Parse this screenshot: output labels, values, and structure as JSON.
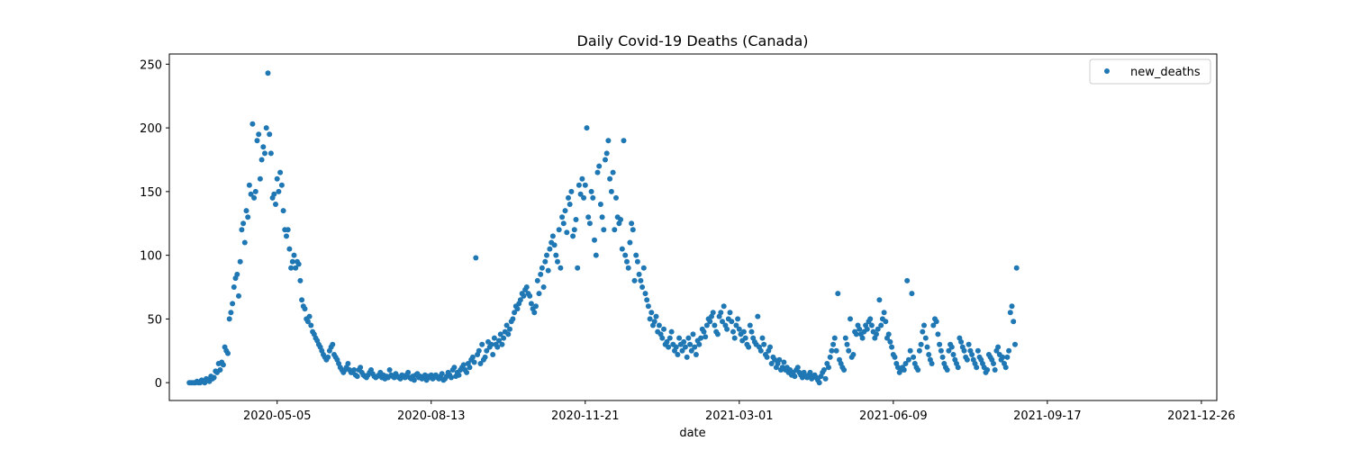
{
  "chart_data": {
    "type": "scatter",
    "title": "Daily Covid-19 Deaths (Canada)",
    "xlabel": "date",
    "ylabel": "",
    "x_ticks": [
      "2020-05-05",
      "2020-08-13",
      "2020-11-21",
      "2021-03-01",
      "2021-06-09",
      "2021-09-17",
      "2021-12-26"
    ],
    "y_ticks": [
      0,
      50,
      100,
      150,
      200,
      250
    ],
    "xlim": [
      "2020-02-25",
      "2022-01-05"
    ],
    "ylim": [
      -14,
      258
    ],
    "legend_position": "top-right",
    "grid": false,
    "colors": {
      "series": "#1f77b4"
    },
    "series": [
      {
        "name": "new_deaths",
        "x_start": "2020-03-09",
        "x_step_days": 1,
        "values": [
          0,
          0,
          0,
          0,
          0,
          1,
          0,
          0,
          2,
          1,
          0,
          3,
          2,
          1,
          5,
          3,
          4,
          9,
          8,
          15,
          10,
          16,
          14,
          28,
          25,
          23,
          50,
          55,
          62,
          75,
          82,
          85,
          68,
          95,
          120,
          125,
          110,
          135,
          130,
          155,
          148,
          203,
          145,
          150,
          190,
          195,
          160,
          175,
          185,
          180,
          200,
          243,
          195,
          180,
          145,
          148,
          140,
          160,
          150,
          165,
          155,
          135,
          120,
          115,
          120,
          105,
          90,
          95,
          100,
          90,
          95,
          93,
          80,
          65,
          60,
          58,
          50,
          48,
          52,
          45,
          40,
          38,
          35,
          33,
          30,
          28,
          25,
          22,
          20,
          18,
          20,
          25,
          28,
          30,
          22,
          20,
          18,
          15,
          12,
          10,
          8,
          10,
          12,
          15,
          10,
          8,
          8,
          10,
          6,
          5,
          10,
          12,
          8,
          6,
          5,
          4,
          6,
          8,
          10,
          7,
          5,
          4,
          5,
          6,
          8,
          4,
          6,
          3,
          5,
          4,
          10,
          6,
          5,
          4,
          7,
          5,
          4,
          3,
          6,
          5,
          4,
          6,
          8,
          4,
          3,
          5,
          2,
          6,
          7,
          4,
          5,
          3,
          4,
          6,
          2,
          5,
          4,
          6,
          3,
          5,
          6,
          4,
          3,
          5,
          7,
          2,
          3,
          5,
          8,
          6,
          4,
          10,
          12,
          5,
          8,
          6,
          10,
          12,
          14,
          10,
          8,
          15,
          12,
          18,
          20,
          16,
          98,
          22,
          25,
          15,
          30,
          18,
          20,
          25,
          32,
          28,
          30,
          22,
          35,
          30,
          28,
          33,
          38,
          30,
          35,
          40,
          45,
          38,
          42,
          48,
          50,
          55,
          60,
          58,
          62,
          65,
          70,
          68,
          73,
          75,
          70,
          68,
          62,
          58,
          55,
          60,
          80,
          70,
          85,
          90,
          75,
          95,
          100,
          88,
          105,
          110,
          115,
          108,
          100,
          95,
          120,
          90,
          130,
          125,
          135,
          118,
          145,
          140,
          150,
          115,
          120,
          128,
          90,
          155,
          148,
          160,
          145,
          155,
          200,
          130,
          125,
          150,
          145,
          112,
          100,
          165,
          170,
          140,
          130,
          120,
          175,
          180,
          190,
          160,
          150,
          165,
          120,
          145,
          130,
          125,
          128,
          105,
          190,
          100,
          95,
          90,
          110,
          125,
          120,
          80,
          100,
          95,
          85,
          80,
          75,
          90,
          70,
          65,
          60,
          50,
          55,
          45,
          48,
          52,
          40,
          45,
          38,
          35,
          42,
          30,
          32,
          28,
          35,
          40,
          30,
          25,
          28,
          22,
          35,
          30,
          25,
          32,
          28,
          20,
          35,
          30,
          25,
          38,
          28,
          22,
          33,
          30,
          35,
          42,
          40,
          36,
          45,
          50,
          48,
          52,
          55,
          45,
          40,
          38,
          52,
          55,
          48,
          60,
          45,
          42,
          50,
          55,
          48,
          40,
          35,
          45,
          50,
          42,
          38,
          33,
          40,
          35,
          30,
          28,
          45,
          40,
          35,
          32,
          30,
          52,
          28,
          25,
          35,
          30,
          22,
          20,
          25,
          28,
          15,
          20,
          18,
          12,
          15,
          18,
          10,
          12,
          16,
          10,
          12,
          8,
          10,
          6,
          8,
          5,
          10,
          12,
          8,
          6,
          4,
          8,
          5,
          4,
          6,
          8,
          3,
          5,
          6,
          4,
          2,
          0,
          5,
          8,
          10,
          3,
          15,
          12,
          20,
          25,
          30,
          35,
          25,
          70,
          18,
          15,
          12,
          10,
          35,
          30,
          25,
          50,
          20,
          22,
          40,
          38,
          45,
          42,
          38,
          35,
          40,
          45,
          42,
          48,
          50,
          45,
          40,
          35,
          38,
          42,
          65,
          45,
          50,
          55,
          48,
          35,
          38,
          32,
          28,
          22,
          20,
          15,
          12,
          8,
          10,
          12,
          10,
          15,
          80,
          18,
          25,
          70,
          20,
          15,
          12,
          10,
          25,
          30,
          40,
          45,
          35,
          28,
          22,
          18,
          15,
          45,
          50,
          48,
          38,
          30,
          25,
          20,
          15,
          12,
          10,
          25,
          30,
          28,
          22,
          18,
          15,
          12,
          35,
          32,
          28,
          25,
          20,
          18,
          30,
          25,
          22,
          18,
          15,
          12,
          25,
          20,
          18,
          15,
          12,
          8,
          10,
          22,
          20,
          18,
          15,
          10,
          25,
          28,
          22,
          18,
          20,
          15,
          12,
          20,
          25,
          55,
          60,
          48,
          30,
          90
        ]
      }
    ]
  }
}
